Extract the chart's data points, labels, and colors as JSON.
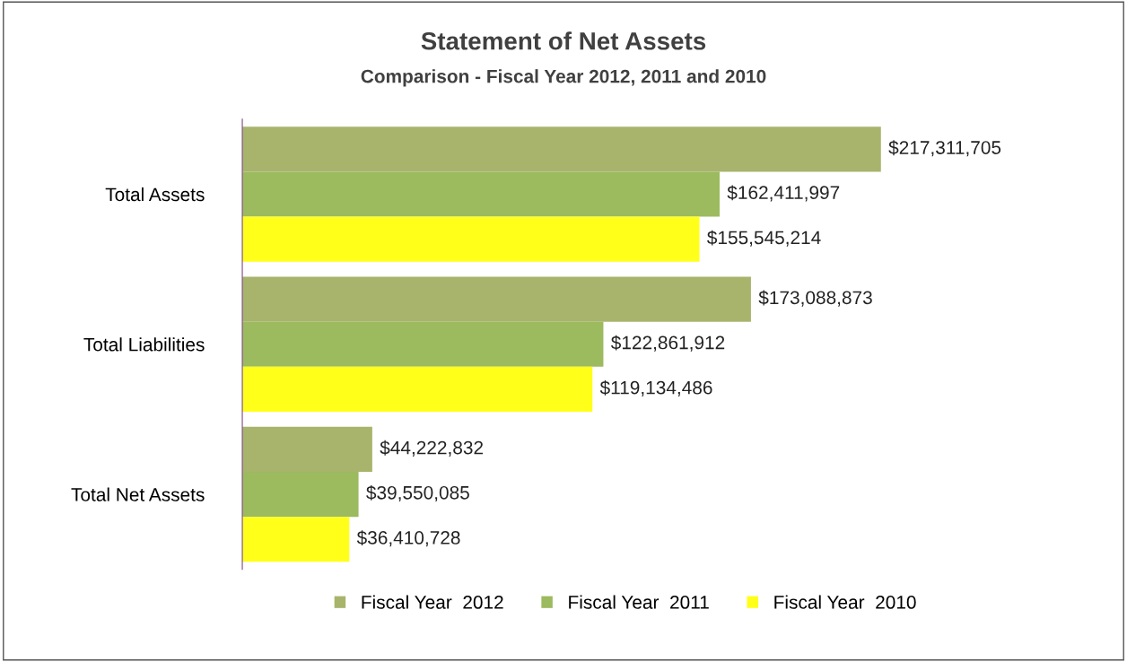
{
  "chart_data": {
    "type": "bar",
    "orientation": "horizontal",
    "title": "Statement of Net Assets",
    "subtitle": "Comparison - Fiscal Year 2012, 2011 and 2010",
    "categories": [
      "Total Assets",
      "Total Liabilities",
      "Total Net Assets"
    ],
    "series": [
      {
        "name": "Fiscal Year  2012",
        "color": "#a8b46c",
        "values": [
          217311705,
          173088873,
          44222832
        ],
        "value_labels": [
          "$217,311,705",
          "$173,088,873",
          "$44,222,832"
        ]
      },
      {
        "name": "Fiscal Year  2011",
        "color": "#9cba5e",
        "values": [
          162411997,
          122861912,
          39550085
        ],
        "value_labels": [
          "$162,411,997",
          "$122,861,912",
          "$39,550,085"
        ]
      },
      {
        "name": "Fiscal Year  2010",
        "color": "#ffff1a",
        "values": [
          155545214,
          119134486,
          36410728
        ],
        "value_labels": [
          "$155,545,214",
          "$119,134,486",
          "$36,410,728"
        ]
      }
    ],
    "legend": "bottom",
    "grid": false
  }
}
